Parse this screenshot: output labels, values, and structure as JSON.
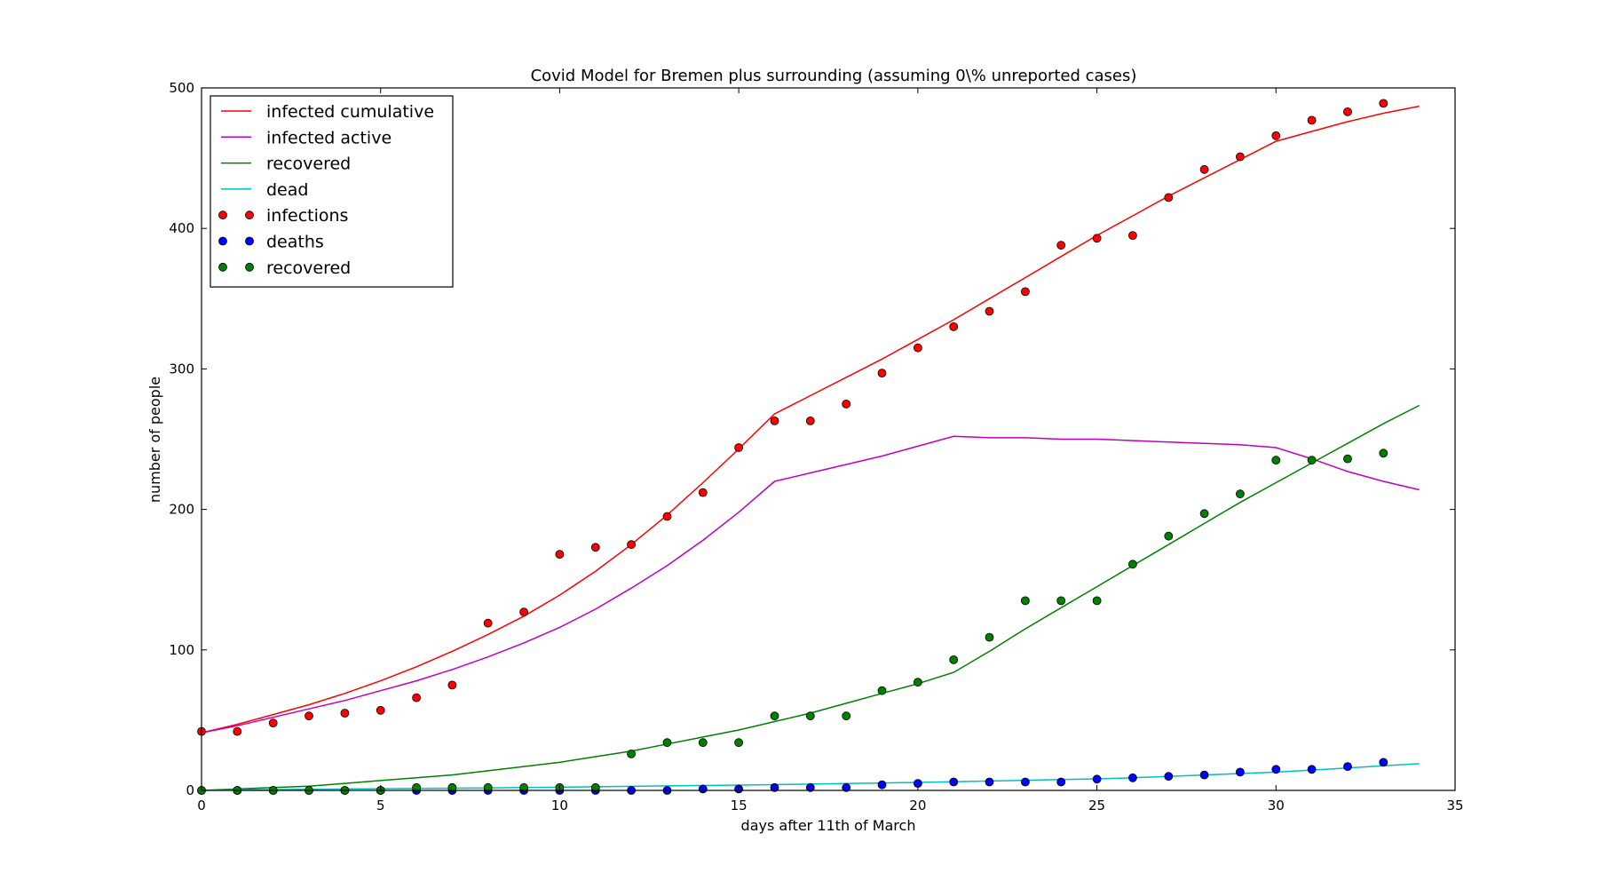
{
  "chart_data": {
    "type": "line",
    "title": "Covid Model for Bremen plus surrounding (assuming 0\\% unreported cases)",
    "xlabel": "days after 11th of March",
    "ylabel": "number of people",
    "xlim": [
      0,
      35
    ],
    "ylim": [
      0,
      500
    ],
    "xticks": [
      0,
      5,
      10,
      15,
      20,
      25,
      30,
      35
    ],
    "yticks": [
      0,
      100,
      200,
      300,
      400,
      500
    ],
    "grid": false,
    "legend_position": "top-left",
    "lines": [
      {
        "name": "infected cumulative",
        "color": "#ff0000",
        "x": [
          0,
          1,
          2,
          3,
          4,
          5,
          6,
          7,
          8,
          9,
          10,
          11,
          12,
          13,
          14,
          15,
          16,
          17,
          18,
          19,
          20,
          21,
          22,
          23,
          24,
          25,
          26,
          27,
          28,
          29,
          30,
          31,
          32,
          33,
          34
        ],
        "y": [
          41,
          47,
          54,
          61,
          69,
          78,
          88,
          99,
          111,
          124,
          139,
          156,
          175,
          196,
          219,
          243,
          268,
          281,
          294,
          307,
          321,
          335,
          350,
          365,
          380,
          395,
          409,
          423,
          436,
          449,
          462,
          469,
          476,
          482,
          487
        ]
      },
      {
        "name": "infected active",
        "color": "#bf00bf",
        "x": [
          0,
          1,
          2,
          3,
          4,
          5,
          6,
          7,
          8,
          9,
          10,
          11,
          12,
          13,
          14,
          15,
          16,
          17,
          18,
          19,
          20,
          21,
          22,
          23,
          24,
          25,
          26,
          27,
          28,
          29,
          30,
          31,
          32,
          33,
          34
        ],
        "y": [
          41,
          46,
          52,
          58,
          64,
          71,
          78,
          86,
          95,
          105,
          116,
          129,
          144,
          160,
          178,
          198,
          220,
          226,
          232,
          238,
          245,
          252,
          251,
          251,
          250,
          250,
          249,
          248,
          247,
          246,
          244,
          236,
          227,
          220,
          214
        ]
      },
      {
        "name": "recovered",
        "color": "#008000",
        "x": [
          0,
          1,
          2,
          3,
          4,
          5,
          6,
          7,
          8,
          9,
          10,
          11,
          12,
          13,
          14,
          15,
          16,
          17,
          18,
          19,
          20,
          21,
          22,
          23,
          24,
          25,
          26,
          27,
          28,
          29,
          30,
          31,
          32,
          33,
          34
        ],
        "y": [
          0,
          1,
          2,
          3,
          5,
          7,
          9,
          11,
          14,
          17,
          20,
          24,
          28,
          33,
          38,
          43,
          49,
          55,
          62,
          69,
          76,
          84,
          99,
          115,
          130,
          145,
          160,
          175,
          190,
          205,
          219,
          233,
          247,
          261,
          274
        ]
      },
      {
        "name": "dead",
        "color": "#00bfbf",
        "x": [
          0,
          1,
          2,
          3,
          4,
          5,
          6,
          7,
          8,
          9,
          10,
          11,
          12,
          13,
          14,
          15,
          16,
          17,
          18,
          19,
          20,
          21,
          22,
          23,
          24,
          25,
          26,
          27,
          28,
          29,
          30,
          31,
          32,
          33,
          34
        ],
        "y": [
          0,
          0.5,
          0.6,
          0.8,
          1,
          1.2,
          1.4,
          1.6,
          1.8,
          2,
          2.3,
          2.6,
          2.9,
          3.2,
          3.5,
          3.8,
          4.1,
          4.5,
          4.9,
          5.3,
          5.7,
          6.2,
          6.7,
          7.2,
          7.7,
          8.2,
          9,
          10,
          11,
          12,
          13,
          14.5,
          16,
          17.5,
          19
        ]
      }
    ],
    "scatter": [
      {
        "name": "infections",
        "color": "#ff0000",
        "x": [
          0,
          1,
          2,
          3,
          4,
          5,
          6,
          7,
          8,
          9,
          10,
          11,
          12,
          13,
          14,
          15,
          16,
          17,
          18,
          19,
          20,
          21,
          22,
          23,
          24,
          25,
          26,
          27,
          28,
          29,
          30,
          31,
          32,
          33
        ],
        "y": [
          42,
          42,
          48,
          53,
          55,
          57,
          66,
          75,
          119,
          127,
          168,
          173,
          175,
          195,
          212,
          244,
          263,
          263,
          275,
          297,
          315,
          330,
          341,
          355,
          388,
          393,
          395,
          422,
          442,
          451,
          466,
          477,
          483,
          489
        ]
      },
      {
        "name": "deaths",
        "color": "#0000ff",
        "x": [
          0,
          1,
          2,
          3,
          4,
          5,
          6,
          7,
          8,
          9,
          10,
          11,
          12,
          13,
          14,
          15,
          16,
          17,
          18,
          19,
          20,
          21,
          22,
          23,
          24,
          25,
          26,
          27,
          28,
          29,
          30,
          31,
          32,
          33
        ],
        "y": [
          0,
          0,
          0,
          0,
          0,
          0,
          0,
          0,
          0,
          0,
          0,
          0,
          0,
          0,
          1,
          1,
          2,
          2,
          2,
          4,
          5,
          6,
          6,
          6,
          6,
          8,
          9,
          10,
          11,
          13,
          15,
          15,
          17,
          20
        ]
      },
      {
        "name": "recovered",
        "color": "#008000",
        "x": [
          0,
          1,
          2,
          3,
          4,
          5,
          6,
          7,
          8,
          9,
          10,
          11,
          12,
          13,
          14,
          15,
          16,
          17,
          18,
          19,
          20,
          21,
          22,
          23,
          24,
          25,
          26,
          27,
          28,
          29,
          30,
          31,
          32,
          33
        ],
        "y": [
          0,
          0,
          0,
          0,
          0,
          0,
          2,
          2,
          2,
          2,
          2,
          2,
          26,
          34,
          34,
          34,
          53,
          53,
          53,
          71,
          77,
          93,
          109,
          135,
          135,
          135,
          161,
          181,
          197,
          211,
          235,
          235,
          236,
          240
        ]
      }
    ]
  }
}
